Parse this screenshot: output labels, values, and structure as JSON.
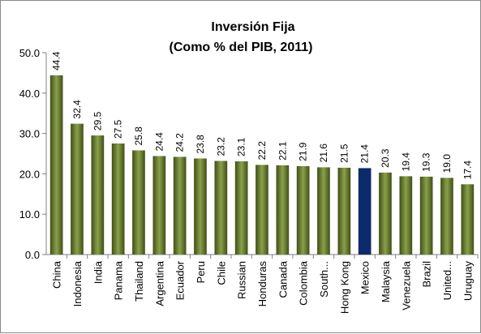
{
  "chart_data": {
    "type": "bar",
    "title": "Inversión Fija",
    "subtitle": "(Como % del PIB, 2011)",
    "xlabel": "",
    "ylabel": "",
    "ylim": [
      0,
      50
    ],
    "yticks": [
      "0.0",
      "10.0",
      "20.0",
      "30.0",
      "40.0",
      "50.0"
    ],
    "categories": [
      "China",
      "Indonesia",
      "India",
      "Panama",
      "Thailand",
      "Argentina",
      "Ecuador",
      "Peru",
      "Chile",
      "Russian",
      "Honduras",
      "Canada",
      "Colombia",
      "South...",
      "Hong Kong",
      "Mexico",
      "Malaysia",
      "Venezuela",
      "Brazil",
      "United...",
      "Uruguay"
    ],
    "values": [
      44.4,
      32.4,
      29.5,
      27.5,
      25.8,
      24.4,
      24.2,
      23.8,
      23.2,
      23.1,
      22.2,
      22.1,
      21.9,
      21.6,
      21.5,
      21.4,
      20.3,
      19.4,
      19.3,
      19.0,
      17.4
    ],
    "value_labels": [
      "44.4",
      "32.4",
      "29.5",
      "27.5",
      "25.8",
      "24.4",
      "24.2",
      "23.8",
      "23.2",
      "23.1",
      "22.2",
      "22.1",
      "21.9",
      "21.6",
      "21.5",
      "21.4",
      "20.3",
      "19.4",
      "19.3",
      "19.0",
      "17.4"
    ],
    "highlight_category": "Mexico",
    "colors": {
      "bar_light": "#8ba04a",
      "bar_dark": "#3f4f17",
      "highlight": "#0d2a6b",
      "axis": "#808080"
    },
    "grid": false,
    "legend": "none"
  }
}
